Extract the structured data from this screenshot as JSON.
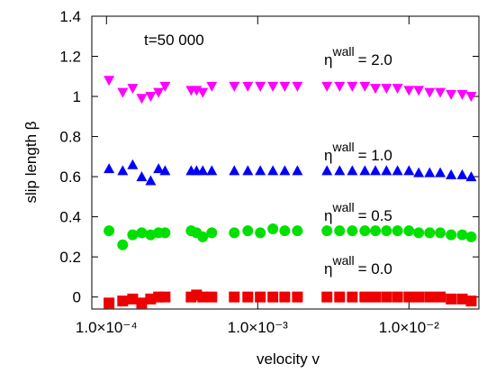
{
  "chart_data": {
    "type": "scatter",
    "xlabel": "velocity  v",
    "ylabel": "slip length β",
    "xscale": "log",
    "xlim": [
      8e-05,
      0.029
    ],
    "xticks": [
      {
        "value": 0.0001,
        "label": "1.0×10⁻⁴"
      },
      {
        "value": 0.001,
        "label": "1.0×10⁻³"
      },
      {
        "value": 0.01,
        "label": "1.0×10⁻²"
      }
    ],
    "ylim": [
      -0.06,
      1.4
    ],
    "yticks": [
      0,
      0.2,
      0.4,
      0.6,
      0.8,
      1,
      1.2,
      1.4
    ],
    "annotations": [
      [
        "t=50 000"
      ],
      [
        "η",
        "wall",
        "= 2.0"
      ],
      [
        "η",
        "wall",
        "= 1.0"
      ],
      [
        "η",
        "wall",
        "= 0.5"
      ],
      [
        "η",
        "wall",
        "= 0.0"
      ]
    ],
    "x": [
      0.000104,
      0.000128,
      0.000149,
      0.000171,
      0.000196,
      0.000221,
      0.000244,
      0.000363,
      0.000394,
      0.000433,
      0.000497,
      0.0007,
      0.00086,
      0.00104,
      0.00126,
      0.00151,
      0.00183,
      0.00287,
      0.00348,
      0.00422,
      0.00511,
      0.006,
      0.0071,
      0.0084,
      0.01,
      0.0116,
      0.0137,
      0.0161,
      0.019,
      0.0225,
      0.0258
    ],
    "series": [
      {
        "color": "#ff00ff",
        "marker": "triangle-down",
        "values": [
          1.08,
          1.02,
          1.04,
          0.99,
          1.0,
          1.02,
          1.05,
          1.03,
          1.03,
          1.02,
          1.05,
          1.05,
          1.05,
          1.05,
          1.05,
          1.05,
          1.05,
          1.05,
          1.05,
          1.05,
          1.05,
          1.04,
          1.04,
          1.04,
          1.03,
          1.03,
          1.02,
          1.02,
          1.01,
          1.01,
          1.0
        ]
      },
      {
        "color": "#0000ff",
        "marker": "triangle-up",
        "values": [
          0.64,
          0.63,
          0.66,
          0.6,
          0.58,
          0.64,
          0.63,
          0.63,
          0.63,
          0.63,
          0.63,
          0.63,
          0.63,
          0.63,
          0.63,
          0.63,
          0.63,
          0.63,
          0.63,
          0.63,
          0.63,
          0.63,
          0.63,
          0.63,
          0.63,
          0.62,
          0.62,
          0.62,
          0.61,
          0.61,
          0.6
        ]
      },
      {
        "color": "#00e000",
        "marker": "circle",
        "values": [
          0.33,
          0.26,
          0.31,
          0.32,
          0.31,
          0.32,
          0.32,
          0.33,
          0.32,
          0.3,
          0.32,
          0.32,
          0.33,
          0.32,
          0.34,
          0.33,
          0.33,
          0.33,
          0.33,
          0.33,
          0.33,
          0.33,
          0.33,
          0.33,
          0.33,
          0.32,
          0.32,
          0.32,
          0.31,
          0.31,
          0.3
        ]
      },
      {
        "color": "#ee0000",
        "marker": "square",
        "values": [
          -0.03,
          -0.02,
          -0.01,
          -0.03,
          -0.01,
          0.0,
          0.0,
          0.0,
          0.01,
          0.0,
          0.0,
          0.0,
          0.0,
          0.0,
          0.0,
          0.0,
          0.0,
          0.0,
          0.0,
          0.0,
          0.0,
          0.0,
          0.0,
          0.0,
          0.0,
          0.0,
          0.0,
          0.0,
          -0.01,
          -0.01,
          -0.02
        ]
      }
    ]
  }
}
